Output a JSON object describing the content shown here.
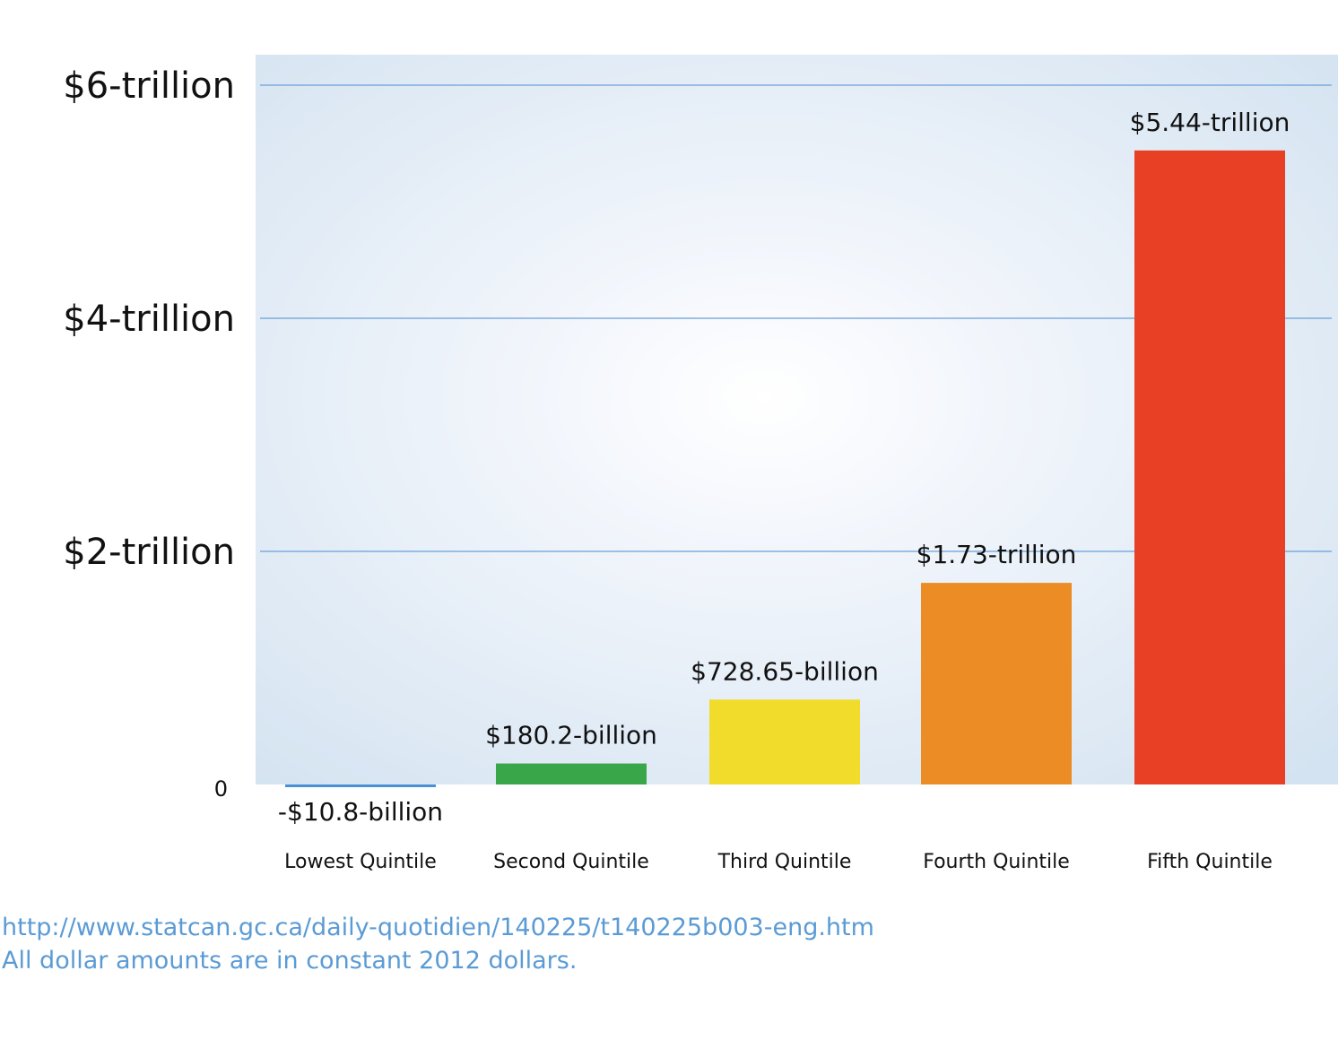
{
  "colors": {
    "plot_bg_center": "#ffffff",
    "plot_bg_edge": "#d4e3f1",
    "gridline": "#6a9fd6",
    "note_text": "#5b9bd5"
  },
  "chart_data": {
    "type": "bar",
    "title": "",
    "xlabel": "",
    "ylabel": "",
    "ylim": [
      0,
      6000
    ],
    "unit": "billions of constant 2012 dollars",
    "grid": true,
    "yticks": [
      {
        "value": 0,
        "label": "0"
      },
      {
        "value": 2000,
        "label": "$2-trillion"
      },
      {
        "value": 4000,
        "label": "$4-trillion"
      },
      {
        "value": 6000,
        "label": "$6-trillion"
      }
    ],
    "categories": [
      "Lowest Quintile",
      "Second Quintile",
      "Third Quintile",
      "Fourth Quintile",
      "Fifth Quintile"
    ],
    "values": [
      -10.8,
      180.2,
      728.65,
      1730,
      5440
    ],
    "data_labels": [
      "-$10.8-billion",
      "$180.2-billion",
      "$728.65-billion",
      "$1.73-trillion",
      "$5.44-trillion"
    ],
    "bar_colors": [
      "#4a90d9",
      "#3aa64a",
      "#f2dc2b",
      "#ec8c25",
      "#e84025"
    ]
  },
  "notes": {
    "source": "http://www.statcan.gc.ca/daily-quotidien/140225/t140225b003-eng.htm",
    "caption": "All dollar amounts are in constant 2012 dollars."
  }
}
